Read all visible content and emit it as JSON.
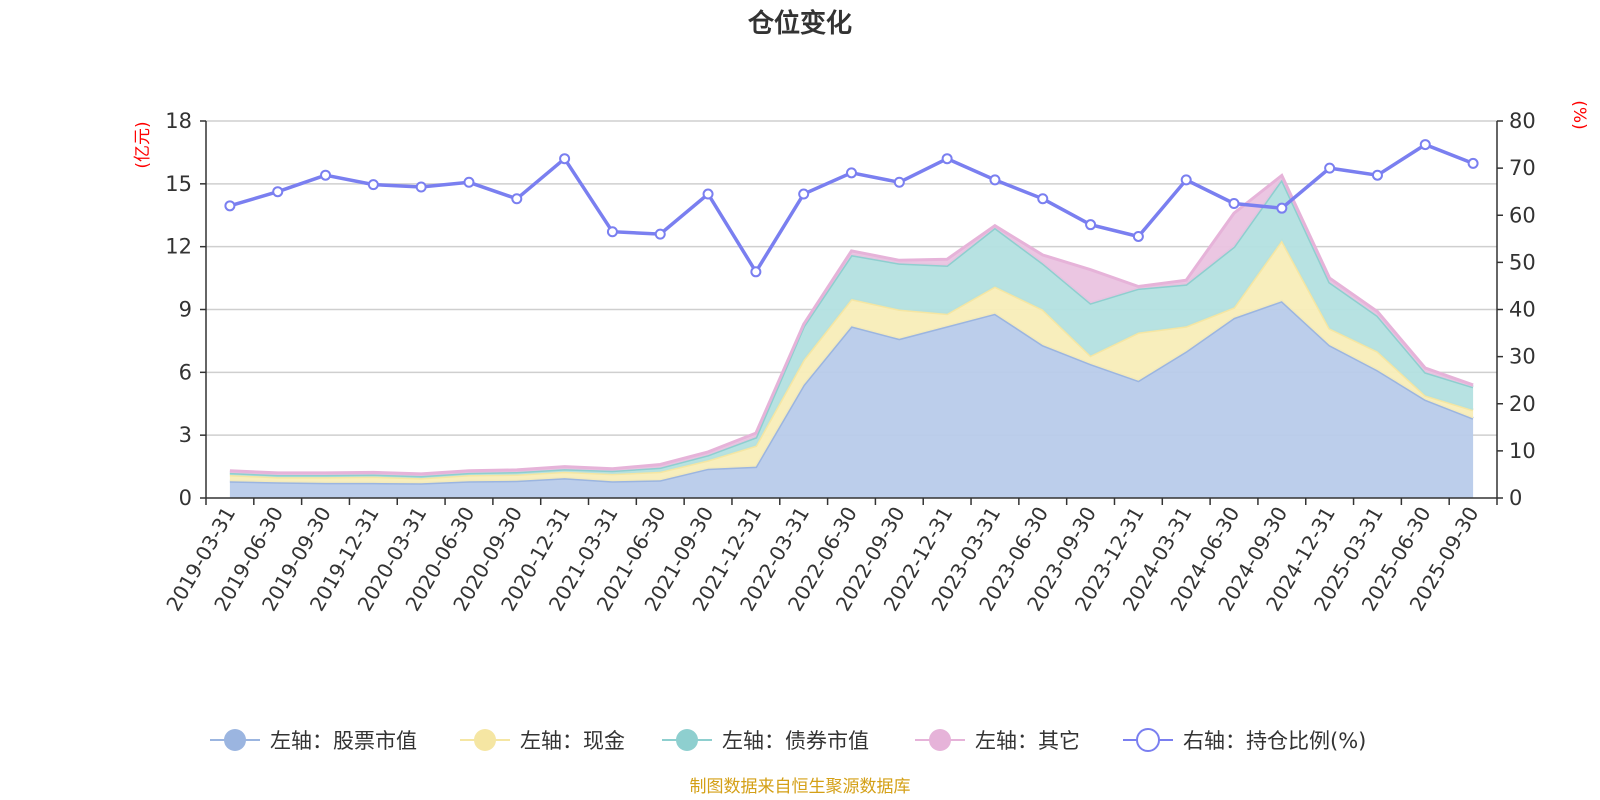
{
  "chart_data": {
    "type": "area",
    "title": "仓位变化",
    "left_unit": "(亿元)",
    "right_unit": "(%)",
    "source": "制图数据来自恒生聚源数据库",
    "categories": [
      "2019-03-31",
      "2019-06-30",
      "2019-09-30",
      "2019-12-31",
      "2020-03-31",
      "2020-06-30",
      "2020-09-30",
      "2020-12-31",
      "2021-03-31",
      "2021-06-30",
      "2021-09-30",
      "2021-12-31",
      "2022-03-31",
      "2022-06-30",
      "2022-09-30",
      "2022-12-31",
      "2023-03-31",
      "2023-06-30",
      "2023-09-30",
      "2023-12-31",
      "2024-03-31",
      "2024-06-30",
      "2024-09-30",
      "2024-12-31",
      "2025-03-31",
      "2025-06-30",
      "2025-09-30"
    ],
    "left_axis": {
      "min": 0,
      "max": 18,
      "ticks": [
        "0",
        "3",
        "6",
        "9",
        "12",
        "15",
        "18"
      ]
    },
    "right_axis": {
      "min": 0,
      "max": 80,
      "ticks": [
        "0",
        "10",
        "20",
        "30",
        "40",
        "50",
        "60",
        "70",
        "80"
      ]
    },
    "stacked_series": [
      {
        "name": "左轴：股票市值",
        "color": "#9bb5e0",
        "fill": "#b8cbea",
        "values": [
          0.8,
          0.75,
          0.72,
          0.72,
          0.7,
          0.8,
          0.82,
          0.95,
          0.8,
          0.85,
          1.4,
          1.5,
          5.4,
          8.2,
          7.6,
          8.2,
          8.8,
          7.3,
          6.4,
          5.6,
          7.0,
          8.6,
          9.4,
          7.3,
          6.1,
          4.7,
          3.8
        ]
      },
      {
        "name": "左轴：现金",
        "color": "#f5e6a3",
        "fill": "#f8edb8",
        "values": [
          0.3,
          0.25,
          0.28,
          0.3,
          0.25,
          0.3,
          0.3,
          0.3,
          0.35,
          0.4,
          0.4,
          1.0,
          1.2,
          1.3,
          1.4,
          0.6,
          1.3,
          1.7,
          0.4,
          2.3,
          1.2,
          0.5,
          2.9,
          0.8,
          0.9,
          0.2,
          0.4
        ]
      },
      {
        "name": "左轴：债券市值",
        "color": "#8ecfcf",
        "fill": "#b3e0e0",
        "values": [
          0.1,
          0.1,
          0.1,
          0.1,
          0.1,
          0.1,
          0.12,
          0.13,
          0.15,
          0.2,
          0.25,
          0.4,
          1.6,
          2.1,
          2.2,
          2.3,
          2.8,
          2.2,
          2.5,
          2.1,
          2.0,
          2.9,
          2.9,
          2.2,
          1.7,
          1.1,
          1.1
        ]
      },
      {
        "name": "左轴：其它",
        "color": "#e6b3d9",
        "fill": "#eac3e0",
        "values": [
          0.1,
          0.1,
          0.1,
          0.1,
          0.1,
          0.1,
          0.1,
          0.12,
          0.1,
          0.15,
          0.15,
          0.2,
          0.1,
          0.2,
          0.15,
          0.3,
          0.1,
          0.4,
          1.6,
          0.1,
          0.2,
          1.6,
          0.2,
          0.2,
          0.2,
          0.2,
          0.1
        ]
      }
    ],
    "line_series": {
      "name": "右轴：持仓比例(%)",
      "color": "#7a7ff0",
      "values": [
        62,
        65,
        68.5,
        66.5,
        66,
        67,
        63.5,
        72,
        56.5,
        56,
        64.5,
        48,
        64.5,
        69,
        67,
        72,
        67.5,
        63.5,
        58,
        55.5,
        67.5,
        62.5,
        61.5,
        70,
        68.5,
        75,
        71
      ]
    }
  }
}
